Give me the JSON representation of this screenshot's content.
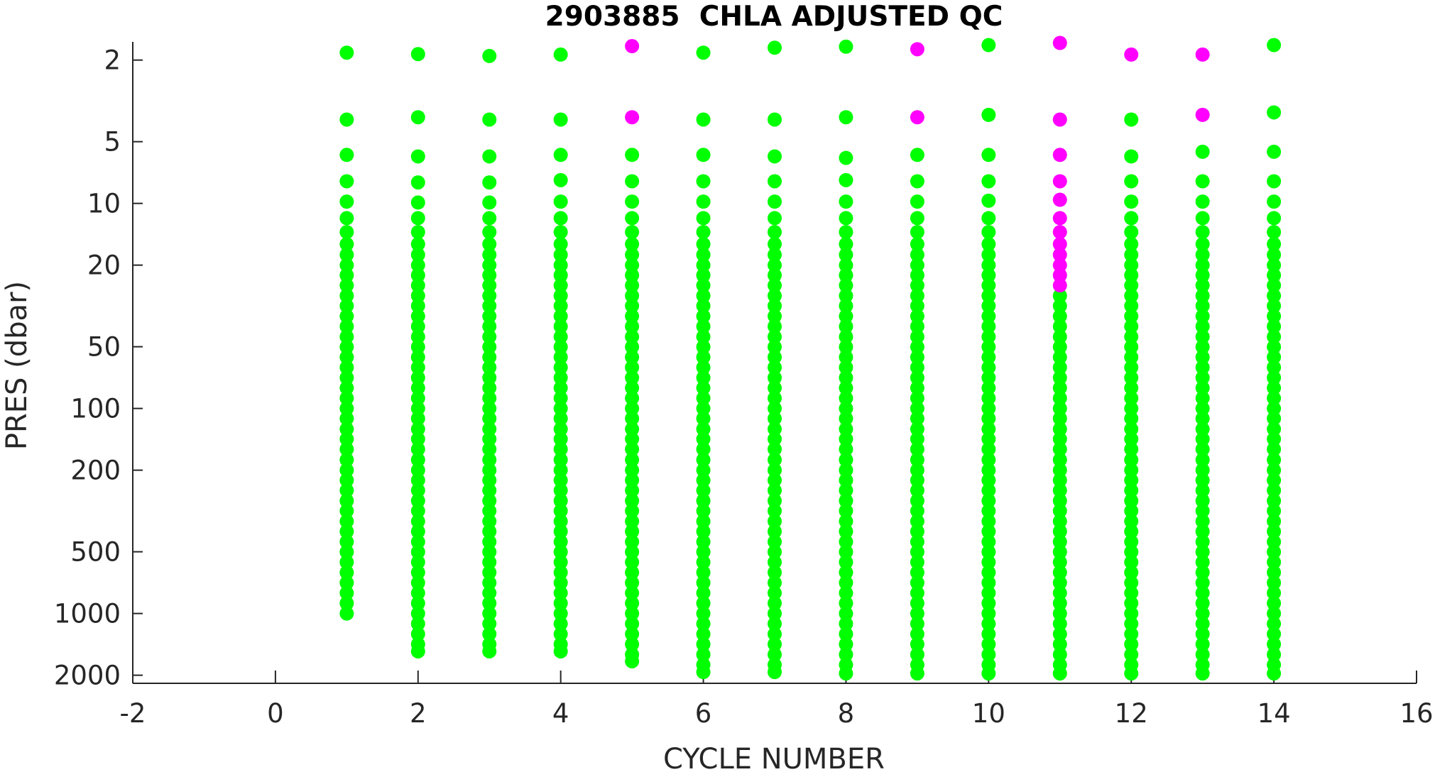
{
  "chart_data": {
    "type": "scatter",
    "title": "2903885  CHLA ADJUSTED QC",
    "xlabel": "CYCLE NUMBER",
    "ylabel": "PRES (dbar)",
    "xlim": [
      -2,
      16
    ],
    "xticks": [
      -2,
      0,
      2,
      4,
      6,
      8,
      10,
      12,
      14,
      16
    ],
    "ylim": [
      1.63,
      2190
    ],
    "yticks": [
      2,
      5,
      10,
      20,
      50,
      100,
      200,
      500,
      1000,
      2000
    ],
    "yscale": "log",
    "yreverse": true,
    "series": [
      {
        "x": 1,
        "color": "#00ff00",
        "values": [
          1.84,
          3.9,
          5.8,
          7.8,
          9.8,
          11.8,
          13.8,
          15.8,
          17.8,
          20,
          22.4,
          25.1,
          28.2,
          31.6,
          35.5,
          39.8,
          44.7,
          50.1,
          56.2,
          63.1,
          70.8,
          79.4,
          89.1,
          100,
          112,
          126,
          141,
          158,
          178,
          200,
          224,
          251,
          282,
          316,
          355,
          398,
          447,
          501,
          562,
          631,
          708,
          794,
          891,
          1000
        ]
      },
      {
        "x": 2,
        "color": "#00ff00",
        "values": [
          1.87,
          3.8,
          5.9,
          7.9,
          9.9,
          11.8,
          13.8,
          15.8,
          17.8,
          20,
          22.4,
          25.1,
          28.2,
          31.6,
          35.5,
          39.8,
          44.7,
          50.1,
          56.2,
          63.1,
          70.8,
          79.4,
          89.1,
          100,
          112,
          126,
          141,
          158,
          178,
          200,
          224,
          251,
          282,
          316,
          355,
          398,
          447,
          501,
          562,
          631,
          708,
          794,
          891,
          1000,
          1122,
          1259,
          1413,
          1530
        ]
      },
      {
        "x": 3,
        "color": "#00ff00",
        "values": [
          1.91,
          3.9,
          5.9,
          7.9,
          9.9,
          11.8,
          13.8,
          15.8,
          17.8,
          20,
          22.4,
          25.1,
          28.2,
          31.6,
          35.5,
          39.8,
          44.7,
          50.1,
          56.2,
          63.1,
          70.8,
          79.4,
          89.1,
          100,
          112,
          126,
          141,
          158,
          178,
          200,
          224,
          251,
          282,
          316,
          355,
          398,
          447,
          501,
          562,
          631,
          708,
          794,
          891,
          1000,
          1122,
          1259,
          1413,
          1530
        ]
      },
      {
        "x": 4,
        "color": "#00ff00",
        "values": [
          1.88,
          3.9,
          5.8,
          7.7,
          9.8,
          11.8,
          13.8,
          15.8,
          17.8,
          20,
          22.4,
          25.1,
          28.2,
          31.6,
          35.5,
          39.8,
          44.7,
          50.1,
          56.2,
          63.1,
          70.8,
          79.4,
          89.1,
          100,
          112,
          126,
          141,
          158,
          178,
          200,
          224,
          251,
          282,
          316,
          355,
          398,
          447,
          501,
          562,
          631,
          708,
          794,
          891,
          1000,
          1122,
          1259,
          1413,
          1530
        ]
      },
      {
        "x": 5,
        "color": "#00ff00",
        "values": [
          5.8,
          7.8,
          9.8,
          11.8,
          13.8,
          15.8,
          17.8,
          20,
          22.4,
          25.1,
          28.2,
          31.6,
          35.5,
          39.8,
          44.7,
          50.1,
          56.2,
          63.1,
          70.8,
          79.4,
          89.1,
          100,
          112,
          126,
          141,
          158,
          178,
          200,
          224,
          251,
          282,
          316,
          355,
          398,
          447,
          501,
          562,
          631,
          708,
          794,
          891,
          1000,
          1122,
          1259,
          1413,
          1585,
          1710
        ]
      },
      {
        "x": 6,
        "color": "#00ff00",
        "values": [
          1.84,
          3.9,
          5.8,
          7.8,
          9.8,
          11.8,
          13.8,
          15.8,
          17.8,
          20,
          22.4,
          25.1,
          28.2,
          31.6,
          35.5,
          39.8,
          44.7,
          50.1,
          56.2,
          63.1,
          70.8,
          79.4,
          89.1,
          100,
          112,
          126,
          141,
          158,
          178,
          200,
          224,
          251,
          282,
          316,
          355,
          398,
          447,
          501,
          562,
          631,
          708,
          794,
          891,
          1000,
          1122,
          1259,
          1413,
          1585,
          1778,
          1930
        ]
      },
      {
        "x": 7,
        "color": "#00ff00",
        "values": [
          1.74,
          3.9,
          5.9,
          7.8,
          9.8,
          11.8,
          13.8,
          15.8,
          17.8,
          20,
          22.4,
          25.1,
          28.2,
          31.6,
          35.5,
          39.8,
          44.7,
          50.1,
          56.2,
          63.1,
          70.8,
          79.4,
          89.1,
          100,
          112,
          126,
          141,
          158,
          178,
          200,
          224,
          251,
          282,
          316,
          355,
          398,
          447,
          501,
          562,
          631,
          708,
          794,
          891,
          1000,
          1122,
          1259,
          1413,
          1585,
          1778,
          1930
        ]
      },
      {
        "x": 8,
        "color": "#00ff00",
        "values": [
          1.72,
          3.8,
          6.0,
          7.7,
          9.8,
          11.8,
          13.8,
          15.8,
          17.8,
          20,
          22.4,
          25.1,
          28.2,
          31.6,
          35.5,
          39.8,
          44.7,
          50.1,
          56.2,
          63.1,
          70.8,
          79.4,
          89.1,
          100,
          112,
          126,
          141,
          158,
          178,
          200,
          224,
          251,
          282,
          316,
          355,
          398,
          447,
          501,
          562,
          631,
          708,
          794,
          891,
          1000,
          1122,
          1259,
          1413,
          1585,
          1778,
          1960
        ]
      },
      {
        "x": 9,
        "color": "#00ff00",
        "values": [
          5.8,
          7.8,
          9.8,
          11.8,
          13.8,
          15.8,
          17.8,
          20,
          22.4,
          25.1,
          28.2,
          31.6,
          35.5,
          39.8,
          44.7,
          50.1,
          56.2,
          63.1,
          70.8,
          79.4,
          89.1,
          100,
          112,
          126,
          141,
          158,
          178,
          200,
          224,
          251,
          282,
          316,
          355,
          398,
          447,
          501,
          562,
          631,
          708,
          794,
          891,
          1000,
          1122,
          1259,
          1413,
          1585,
          1778,
          1960
        ]
      },
      {
        "x": 10,
        "color": "#00ff00",
        "values": [
          1.69,
          3.7,
          5.8,
          7.8,
          9.7,
          11.8,
          13.8,
          15.8,
          17.8,
          20,
          22.4,
          25.1,
          28.2,
          31.6,
          35.5,
          39.8,
          44.7,
          50.1,
          56.2,
          63.1,
          70.8,
          79.4,
          89.1,
          100,
          112,
          126,
          141,
          158,
          178,
          200,
          224,
          251,
          282,
          316,
          355,
          398,
          447,
          501,
          562,
          631,
          708,
          794,
          891,
          1000,
          1122,
          1259,
          1413,
          1585,
          1778,
          1960
        ]
      },
      {
        "x": 11,
        "color": "#00ff00",
        "values": [
          28.2,
          31.6,
          35.5,
          39.8,
          44.7,
          50.1,
          56.2,
          63.1,
          70.8,
          79.4,
          89.1,
          100,
          112,
          126,
          141,
          158,
          178,
          200,
          224,
          251,
          282,
          316,
          355,
          398,
          447,
          501,
          562,
          631,
          708,
          794,
          891,
          1000,
          1122,
          1259,
          1413,
          1585,
          1778,
          1960
        ]
      },
      {
        "x": 12,
        "color": "#00ff00",
        "values": [
          3.9,
          5.9,
          7.8,
          9.8,
          11.8,
          13.8,
          15.8,
          17.8,
          20,
          22.4,
          25.1,
          28.2,
          31.6,
          35.5,
          39.8,
          44.7,
          50.1,
          56.2,
          63.1,
          70.8,
          79.4,
          89.1,
          100,
          112,
          126,
          141,
          158,
          178,
          200,
          224,
          251,
          282,
          316,
          355,
          398,
          447,
          501,
          562,
          631,
          708,
          794,
          891,
          1000,
          1122,
          1259,
          1413,
          1585,
          1778,
          1960
        ]
      },
      {
        "x": 13,
        "color": "#00ff00",
        "values": [
          5.6,
          7.8,
          9.8,
          11.8,
          13.8,
          15.8,
          17.8,
          20,
          22.4,
          25.1,
          28.2,
          31.6,
          35.5,
          39.8,
          44.7,
          50.1,
          56.2,
          63.1,
          70.8,
          79.4,
          89.1,
          100,
          112,
          126,
          141,
          158,
          178,
          200,
          224,
          251,
          282,
          316,
          355,
          398,
          447,
          501,
          562,
          631,
          708,
          794,
          891,
          1000,
          1122,
          1259,
          1413,
          1585,
          1778,
          1960
        ]
      },
      {
        "x": 14,
        "color": "#00ff00",
        "values": [
          1.69,
          3.6,
          5.6,
          7.8,
          9.8,
          11.8,
          13.8,
          15.8,
          17.8,
          20,
          22.4,
          25.1,
          28.2,
          31.6,
          35.5,
          39.8,
          44.7,
          50.1,
          56.2,
          63.1,
          70.8,
          79.4,
          89.1,
          100,
          112,
          126,
          141,
          158,
          178,
          200,
          224,
          251,
          282,
          316,
          355,
          398,
          447,
          501,
          562,
          631,
          708,
          794,
          891,
          1000,
          1122,
          1259,
          1413,
          1585,
          1778,
          1960
        ]
      },
      {
        "x": 5,
        "color": "#ff00ff",
        "values": [
          1.71,
          3.8
        ]
      },
      {
        "x": 9,
        "color": "#ff00ff",
        "values": [
          1.77,
          3.8
        ]
      },
      {
        "x": 11,
        "color": "#ff00ff",
        "values": [
          1.65,
          3.9,
          5.8,
          7.8,
          9.6,
          11.8,
          13.8,
          15.8,
          17.8,
          20,
          22.4,
          25.1
        ]
      },
      {
        "x": 12,
        "color": "#ff00ff",
        "values": [
          1.88
        ]
      },
      {
        "x": 13,
        "color": "#ff00ff",
        "values": [
          1.88,
          3.7
        ]
      }
    ]
  }
}
